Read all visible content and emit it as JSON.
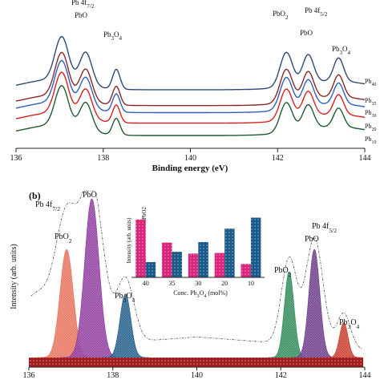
{
  "chart_data": [
    {
      "panel": "a",
      "type": "line",
      "xlabel": "Binding energy (eV)",
      "ylabel": "",
      "xlim": [
        136,
        144
      ],
      "x_ticks": [
        "136",
        "138",
        "140",
        "142",
        "144"
      ],
      "grid": false,
      "legend": "none",
      "series": [
        {
          "name": "Pb40",
          "color": "#2f4a78",
          "baseline": 0.62,
          "amps": [
            0.8,
            0.6,
            0.36,
            0.62,
            0.52,
            0.42
          ]
        },
        {
          "name": "Pb35",
          "color": "#8a2828",
          "baseline": 0.44,
          "amps": [
            0.8,
            0.58,
            0.34,
            0.6,
            0.5,
            0.4
          ]
        },
        {
          "name": "Pb30",
          "color": "#2f5fbf",
          "baseline": 0.36,
          "amps": [
            0.78,
            0.56,
            0.33,
            0.58,
            0.48,
            0.38
          ]
        },
        {
          "name": "Pb20",
          "color": "#d82020",
          "baseline": 0.24,
          "amps": [
            0.76,
            0.54,
            0.32,
            0.56,
            0.46,
            0.36
          ]
        },
        {
          "name": "Pb10",
          "color": "#1f5c2e",
          "baseline": 0.1,
          "amps": [
            0.74,
            0.52,
            0.3,
            0.54,
            0.44,
            0.34
          ]
        }
      ],
      "peaks": [
        {
          "label": "Pb 4f7/2",
          "x": 137.05
        },
        {
          "label": "PbO",
          "x": 137.6
        },
        {
          "label": "Pb3O4",
          "x": 138.3
        },
        {
          "label": "PbO2",
          "x": 142.2
        },
        {
          "label": "PbO",
          "x": 142.7
        },
        {
          "label": "Pb3O4",
          "x": 143.4
        }
      ],
      "annotations": {
        "pb_top_left": "Pb 4f",
        "pb_top_left_sub": "7/2",
        "pbo": "PbO",
        "pb3o4_left_main": "Pb",
        "pb3o4_left_sub1": "3",
        "pb3o4_left_o": "O",
        "pb3o4_left_sub2": "4",
        "pbo2_main": "PbO",
        "pbo2_sub": "2",
        "pb_top_right": "Pb 4f",
        "pb_top_right_sub": "5/2",
        "pbo_right": "PbO",
        "pb3o4_right_main": "Pb",
        "pb3o4_right_sub1": "3",
        "pb3o4_right_o": "O",
        "pb3o4_right_sub2": "4"
      },
      "series_labels": [
        "Pb40",
        "Pb35",
        "Pb30",
        "Pb20",
        "Pb10"
      ]
    },
    {
      "panel": "b",
      "panel_label": "(b)",
      "type": "area",
      "xlabel": "",
      "ylabel": "Intensity (arb. units)",
      "xlim": [
        136,
        144
      ],
      "x_ticks": [
        "136",
        "138",
        "140",
        "142",
        "144"
      ],
      "peaks": [
        {
          "label": "PbO2",
          "center": 136.9,
          "amp": 0.68,
          "width": 0.22,
          "color": "#e8705a"
        },
        {
          "label": "PbO",
          "center": 137.5,
          "amp": 1.0,
          "width": 0.24,
          "color": "#8e3b9e"
        },
        {
          "label": "Pb3O4",
          "center": 138.3,
          "amp": 0.4,
          "width": 0.18,
          "color": "#1f5c8a"
        },
        {
          "label": "PbO2",
          "center": 142.2,
          "amp": 0.54,
          "width": 0.16,
          "color": "#2f8a5a"
        },
        {
          "label": "PbO",
          "center": 142.8,
          "amp": 0.68,
          "width": 0.18,
          "color": "#6a3a8a"
        },
        {
          "label": "Pb3O4",
          "center": 143.5,
          "amp": 0.22,
          "width": 0.14,
          "color": "#c83a2a"
        }
      ],
      "annotations": {
        "pb_left": "Pb 4f",
        "pb_left_sub": "7/2",
        "pbo2_left_main": "PbO",
        "pbo2_left_sub": "2",
        "pbo_left": "PbO",
        "pb3o4_left_main": "Pb",
        "pb3o4_left_sub1": "3",
        "pb3o4_left_o": "O",
        "pb3o4_left_sub2": "4",
        "pb_right": "Pb 4f",
        "pb_right_sub": "5/2",
        "pbo_right": "PbO",
        "pbo2_right_main": "PbO",
        "pbo2_right_sub": "2",
        "pb3o4_right_main": "Pb",
        "pb3o4_right_sub1": "3",
        "pb3o4_right_o": "O",
        "pb3o4_right_sub2": "4"
      },
      "inset": {
        "type": "bar",
        "ylabel": "Intensity (arb. units)",
        "xlabel_main": "Conc. Pb",
        "xlabel_sub1": "3",
        "xlabel_o": "O",
        "xlabel_sub2": "4",
        "xlabel_unit": " (mol%)",
        "categories": [
          "40",
          "35",
          "30",
          "20",
          "10"
        ],
        "series": [
          {
            "name": "PbO2",
            "color": "#d8247a",
            "values": [
              0.95,
              0.57,
              0.39,
              0.4,
              0.22
            ]
          },
          {
            "name": "PbO",
            "color": "#1a5a8a",
            "values": [
              0.25,
              0.42,
              0.58,
              0.8,
              0.98
            ]
          }
        ],
        "legend_labels": [
          "PbO",
          "PbO2"
        ]
      }
    }
  ]
}
